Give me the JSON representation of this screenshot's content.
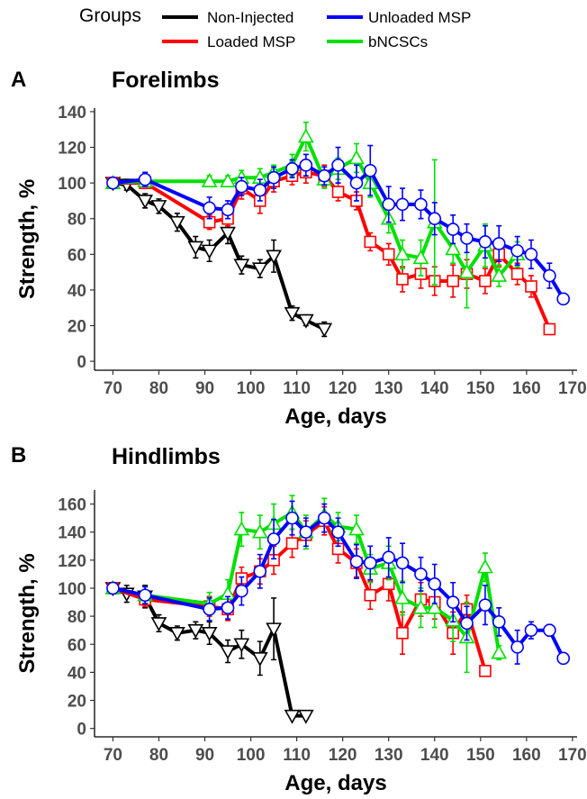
{
  "legend": {
    "title": "Groups",
    "items": [
      {
        "key": "noninj",
        "label": "Non-Injected",
        "color": "#000000"
      },
      {
        "key": "unloaded",
        "label": "Unloaded MSP",
        "color": "#0000ff"
      },
      {
        "key": "loaded",
        "label": "Loaded MSP",
        "color": "#ff0000"
      },
      {
        "key": "bncsc",
        "label": "bNCSCs",
        "color": "#00e000"
      }
    ]
  },
  "chart_data": [
    {
      "type": "line",
      "panel": "A",
      "title": "Forelimbs",
      "xlabel": "Age, days",
      "ylabel": "Strength, %",
      "xlim": [
        66,
        171
      ],
      "ylim": [
        -5,
        142
      ],
      "xticks": [
        70,
        80,
        90,
        100,
        110,
        120,
        130,
        140,
        150,
        160,
        170
      ],
      "yticks": [
        0,
        20,
        40,
        60,
        80,
        100,
        120,
        140
      ],
      "series": [
        {
          "name": "Non-Injected",
          "key": "noninj",
          "color": "#000000",
          "marker": "triangle-down",
          "x": [
            70,
            73,
            77,
            80,
            84,
            88,
            91,
            95,
            98,
            102,
            105,
            109,
            112,
            116
          ],
          "y": [
            100,
            99,
            90,
            87,
            78,
            64,
            62,
            72,
            54,
            52,
            59,
            27,
            23,
            18
          ],
          "err": [
            3,
            3,
            4,
            4,
            5,
            6,
            6,
            6,
            5,
            5,
            9,
            4,
            3,
            4
          ]
        },
        {
          "name": "Loaded MSP",
          "key": "loaded",
          "color": "#ff0000",
          "marker": "square",
          "x": [
            70,
            77,
            91,
            95,
            98,
            102,
            105,
            109,
            112,
            116,
            119,
            123,
            126,
            130,
            133,
            137,
            140,
            144,
            147,
            151,
            154,
            158,
            161,
            165
          ],
          "y": [
            100,
            100,
            78,
            80,
            97,
            90,
            101,
            104,
            106,
            104,
            95,
            90,
            67,
            60,
            46,
            49,
            45,
            45,
            49,
            45,
            60,
            49,
            42,
            18
          ],
          "err": [
            2,
            3,
            4,
            4,
            6,
            7,
            6,
            5,
            6,
            6,
            5,
            5,
            5,
            6,
            7,
            8,
            8,
            9,
            8,
            7,
            7,
            6,
            6,
            2
          ]
        },
        {
          "name": "bNCSCs",
          "key": "bncsc",
          "color": "#00e000",
          "marker": "triangle-up",
          "x": [
            70,
            77,
            91,
            95,
            98,
            102,
            105,
            109,
            112,
            116,
            119,
            123,
            126,
            130,
            133,
            137,
            140,
            144,
            147,
            151,
            154,
            158
          ],
          "y": [
            100,
            101,
            101,
            101,
            103,
            103,
            106,
            110,
            126,
            102,
            108,
            114,
            100,
            80,
            60,
            58,
            78,
            63,
            50,
            65,
            48,
            60
          ],
          "err": [
            2,
            3,
            3,
            3,
            4,
            5,
            4,
            6,
            8,
            5,
            6,
            8,
            8,
            8,
            8,
            10,
            35,
            8,
            20,
            12,
            6,
            7
          ]
        },
        {
          "name": "Unloaded MSP",
          "key": "unloaded",
          "color": "#0000ff",
          "marker": "circle",
          "x": [
            70,
            77,
            91,
            95,
            98,
            102,
            105,
            109,
            112,
            116,
            119,
            123,
            126,
            130,
            133,
            137,
            140,
            144,
            147,
            151,
            154,
            158,
            161,
            165,
            168
          ],
          "y": [
            100,
            102,
            86,
            85,
            98,
            96,
            103,
            108,
            110,
            104,
            110,
            100,
            107,
            88,
            88,
            88,
            80,
            74,
            69,
            67,
            66,
            62,
            60,
            48,
            35
          ],
          "err": [
            3,
            4,
            6,
            5,
            5,
            6,
            6,
            5,
            6,
            5,
            10,
            10,
            14,
            10,
            9,
            8,
            9,
            8,
            8,
            9,
            10,
            8,
            8,
            7,
            2
          ]
        }
      ]
    },
    {
      "type": "line",
      "panel": "B",
      "title": "Hindlimbs",
      "xlabel": "Age, days",
      "ylabel": "Strength, %",
      "xlim": [
        66,
        171
      ],
      "ylim": [
        -6,
        170
      ],
      "xticks": [
        70,
        80,
        90,
        100,
        110,
        120,
        130,
        140,
        150,
        160,
        170
      ],
      "yticks": [
        0,
        20,
        40,
        60,
        80,
        100,
        120,
        140,
        160
      ],
      "series": [
        {
          "name": "Non-Injected",
          "key": "noninj",
          "color": "#000000",
          "marker": "triangle-down",
          "x": [
            70,
            73,
            77,
            80,
            84,
            88,
            91,
            95,
            98,
            102,
            105,
            109,
            112
          ],
          "y": [
            100,
            96,
            94,
            75,
            68,
            70,
            68,
            55,
            60,
            50,
            71,
            9,
            9
          ],
          "err": [
            4,
            6,
            8,
            6,
            5,
            6,
            8,
            8,
            10,
            12,
            22,
            2,
            2
          ]
        },
        {
          "name": "Loaded MSP",
          "key": "loaded",
          "color": "#ff0000",
          "marker": "square",
          "x": [
            70,
            77,
            91,
            95,
            98,
            102,
            105,
            109,
            112,
            116,
            119,
            123,
            126,
            130,
            133,
            137,
            140,
            144,
            147,
            151
          ],
          "y": [
            100,
            92,
            87,
            85,
            107,
            112,
            120,
            132,
            138,
            148,
            128,
            118,
            95,
            103,
            68,
            92,
            90,
            68,
            85,
            41
          ],
          "err": [
            4,
            5,
            7,
            8,
            8,
            9,
            10,
            10,
            10,
            10,
            10,
            10,
            10,
            12,
            15,
            12,
            12,
            15,
            10,
            3
          ]
        },
        {
          "name": "bNCSCs",
          "key": "bncsc",
          "color": "#00e000",
          "marker": "triangle-up",
          "x": [
            70,
            77,
            91,
            95,
            98,
            102,
            105,
            109,
            112,
            116,
            119,
            123,
            126,
            130,
            133,
            137,
            140,
            144,
            147,
            151,
            154
          ],
          "y": [
            100,
            95,
            89,
            96,
            142,
            140,
            146,
            154,
            140,
            152,
            144,
            142,
            114,
            118,
            93,
            86,
            86,
            77,
            65,
            115,
            54
          ],
          "err": [
            4,
            6,
            8,
            10,
            12,
            12,
            14,
            12,
            12,
            12,
            10,
            10,
            10,
            12,
            12,
            14,
            14,
            15,
            25,
            10,
            5
          ]
        },
        {
          "name": "Unloaded MSP",
          "key": "unloaded",
          "color": "#0000ff",
          "marker": "circle",
          "x": [
            70,
            77,
            91,
            95,
            98,
            102,
            105,
            109,
            112,
            116,
            119,
            123,
            126,
            130,
            133,
            137,
            140,
            144,
            147,
            151,
            154,
            158,
            161,
            165,
            168
          ],
          "y": [
            100,
            95,
            85,
            86,
            98,
            112,
            135,
            150,
            140,
            150,
            140,
            119,
            118,
            122,
            118,
            110,
            103,
            90,
            75,
            88,
            76,
            58,
            70,
            70,
            50
          ],
          "err": [
            4,
            6,
            8,
            8,
            10,
            12,
            14,
            12,
            10,
            10,
            10,
            12,
            12,
            14,
            14,
            12,
            14,
            14,
            12,
            14,
            10,
            12,
            6,
            4,
            3
          ]
        }
      ]
    }
  ]
}
